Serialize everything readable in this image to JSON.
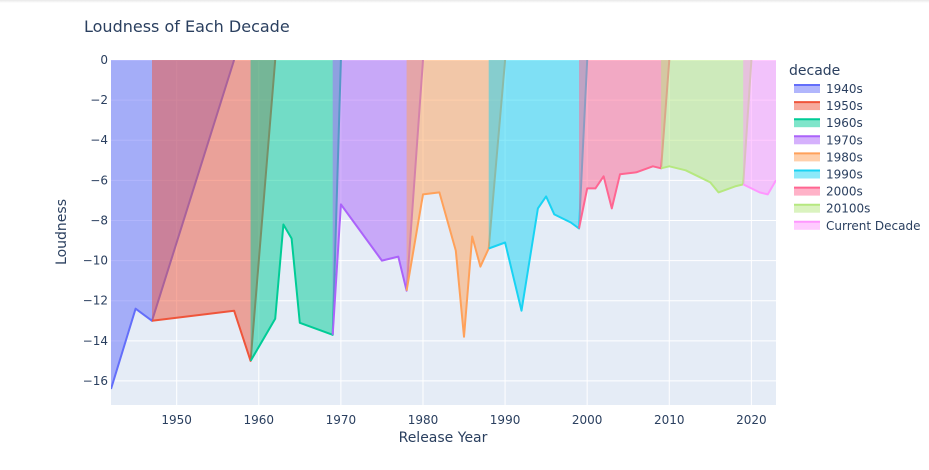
{
  "chart_data": {
    "type": "area",
    "title": "Loudness of Each Decade",
    "xlabel": "Release Year",
    "ylabel": "Loudness",
    "xlim": [
      1942,
      2023
    ],
    "ylim": [
      -17.2,
      0
    ],
    "x_ticks": [
      1950,
      1960,
      1970,
      1980,
      1990,
      2000,
      2010,
      2020
    ],
    "y_ticks": [
      0,
      -2,
      -4,
      -6,
      -8,
      -10,
      -12,
      -14,
      -16
    ],
    "y_tick_labels": [
      "0",
      "−2",
      "−4",
      "−6",
      "−8",
      "−10",
      "−12",
      "−14",
      "−16"
    ],
    "legend_title": "decade",
    "legend_position": "right",
    "grid": true,
    "series": [
      {
        "name": "1940s",
        "color": "#636efa",
        "x": [
          1942,
          1945,
          1947,
          1957
        ],
        "y": [
          -16.4,
          -12.4,
          -13.0,
          0
        ]
      },
      {
        "name": "1950s",
        "color": "#ef553b",
        "x": [
          1947,
          1957,
          1959,
          1962
        ],
        "y": [
          -13.0,
          -12.5,
          -15.0,
          0
        ]
      },
      {
        "name": "1960s",
        "color": "#00cc96",
        "x": [
          1959,
          1962,
          1963,
          1964,
          1965,
          1969,
          1970
        ],
        "y": [
          -15.0,
          -12.9,
          -8.2,
          -8.9,
          -13.1,
          -13.7,
          0
        ]
      },
      {
        "name": "1970s",
        "color": "#ab63fa",
        "x": [
          1969,
          1970,
          1975,
          1977,
          1978,
          1980
        ],
        "y": [
          -13.7,
          -7.2,
          -10.0,
          -9.8,
          -11.5,
          0
        ]
      },
      {
        "name": "1980s",
        "color": "#ffa15a",
        "x": [
          1978,
          1980,
          1982,
          1984,
          1985,
          1986,
          1987,
          1988,
          1990
        ],
        "y": [
          -11.5,
          -6.7,
          -6.6,
          -9.5,
          -13.8,
          -8.8,
          -10.3,
          -9.4,
          0
        ]
      },
      {
        "name": "1990s",
        "color": "#19d3f3",
        "x": [
          1988,
          1990,
          1992,
          1994,
          1995,
          1996,
          1998,
          1999,
          2000
        ],
        "y": [
          -9.4,
          -9.1,
          -12.5,
          -7.4,
          -6.8,
          -7.7,
          -8.1,
          -8.4,
          0
        ]
      },
      {
        "name": "2000s",
        "color": "#ff6692",
        "x": [
          1999,
          2000,
          2001,
          2002,
          2003,
          2004,
          2006,
          2008,
          2009,
          2010
        ],
        "y": [
          -8.4,
          -6.4,
          -6.4,
          -5.8,
          -7.4,
          -5.7,
          -5.6,
          -5.3,
          -5.4,
          0
        ]
      },
      {
        "name": "20100s",
        "color": "#b6e880",
        "x": [
          2009,
          2010,
          2012,
          2014,
          2015,
          2016,
          2018,
          2019,
          2020
        ],
        "y": [
          -5.4,
          -5.3,
          -5.5,
          -5.9,
          -6.1,
          -6.6,
          -6.3,
          -6.2,
          0
        ]
      },
      {
        "name": "Current Decade",
        "color": "#ff97ff",
        "x": [
          2019,
          2020,
          2021,
          2022,
          2023
        ],
        "y": [
          -6.2,
          -6.4,
          -6.6,
          -6.7,
          -6.0
        ]
      }
    ]
  }
}
